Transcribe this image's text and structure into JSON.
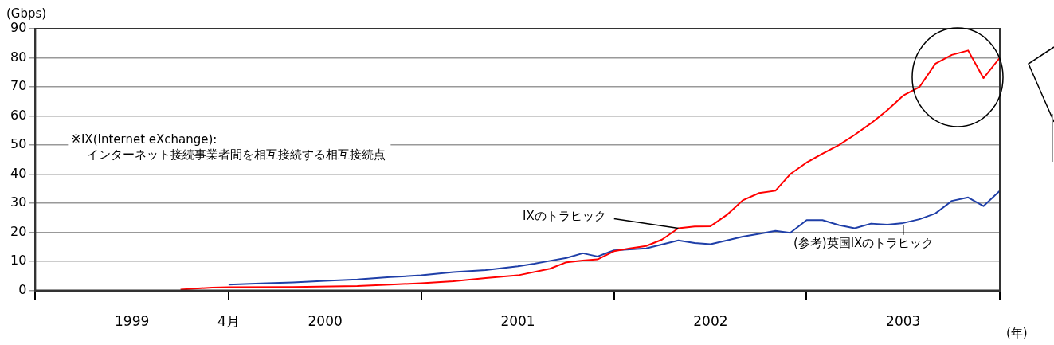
{
  "chart_data": {
    "type": "line",
    "ylabel": "(Gbps)",
    "xlabel": "(年)",
    "annotations": [
      "※IX(Internet eXchange):\nインターネット接続事業者間を相互接続する相互接続点"
    ],
    "xlim": [
      "1999-04",
      "2004-04"
    ],
    "xticks": [
      {
        "value": "1999-04",
        "label": null
      },
      {
        "value": "1999-10",
        "label": "1999"
      },
      {
        "value": "2000-04",
        "label": "4月"
      },
      {
        "value": "2000-10",
        "label": "2000"
      },
      {
        "value": "2001-04",
        "label": null
      },
      {
        "value": "2001-10",
        "label": "2001"
      },
      {
        "value": "2002-04",
        "label": null
      },
      {
        "value": "2002-10",
        "label": "2002"
      },
      {
        "value": "2003-04",
        "label": null
      },
      {
        "value": "2003-10",
        "label": "2003"
      },
      {
        "value": "2004-04",
        "label": null
      }
    ],
    "ylim": [
      0,
      90
    ],
    "yticks": [
      0,
      10,
      20,
      30,
      40,
      50,
      60,
      70,
      80,
      90
    ],
    "grid": "y",
    "legend": false,
    "marker": "none",
    "line_style": "solid",
    "series": [
      {
        "name": "IXのトラヒック",
        "color": "#ff0000",
        "x": [
          "2000-01",
          "2000-03",
          "2000-04",
          "2000-08",
          "2000-12",
          "2001-02",
          "2001-04",
          "2001-06",
          "2001-08",
          "2001-10",
          "2001-12",
          "2002-01",
          "2002-02",
          "2002-03",
          "2002-04",
          "2002-05",
          "2002-06",
          "2002-07",
          "2002-08",
          "2002-09",
          "2002-10",
          "2002-11",
          "2002-12",
          "2003-01",
          "2003-02",
          "2003-03",
          "2003-04",
          "2003-05",
          "2003-06",
          "2003-07",
          "2003-08",
          "2003-09",
          "2003-10",
          "2003-11",
          "2003-12",
          "2004-01",
          "2004-02",
          "2004-03",
          "2004-04"
        ],
        "values": [
          0.3,
          1.0,
          1.1,
          1.2,
          1.5,
          2.0,
          2.5,
          3.2,
          4.3,
          5.2,
          7.5,
          9.7,
          10.3,
          10.7,
          13.5,
          14.5,
          15.3,
          17.5,
          21.4,
          22,
          22.1,
          26,
          31,
          33.5,
          34.3,
          40,
          44,
          47,
          50,
          53.5,
          57.5,
          62,
          67,
          70,
          78,
          81,
          82.5,
          73,
          80
        ]
      },
      {
        "name": "(参考)英国IXのトラヒック",
        "color": "#1f3fa8",
        "x": [
          "2000-04",
          "2000-06",
          "2000-08",
          "2000-10",
          "2000-12",
          "2001-02",
          "2001-04",
          "2001-06",
          "2001-08",
          "2001-10",
          "2001-11",
          "2001-12",
          "2002-01",
          "2002-02",
          "2002-03",
          "2002-04",
          "2002-06",
          "2002-08",
          "2002-09",
          "2002-10",
          "2002-11",
          "2002-12",
          "2003-01",
          "2003-02",
          "2003-03",
          "2003-04",
          "2003-05",
          "2003-06",
          "2003-07",
          "2003-08",
          "2003-09",
          "2003-10",
          "2003-11",
          "2003-12",
          "2004-01",
          "2004-02",
          "2004-03",
          "2004-04"
        ],
        "values": [
          2.0,
          2.4,
          2.8,
          3.3,
          3.8,
          4.6,
          5.2,
          6.3,
          7.0,
          8.3,
          9.2,
          10.2,
          11.2,
          12.8,
          11.7,
          13.8,
          14.5,
          17.2,
          16.3,
          15.9,
          17.2,
          18.5,
          19.5,
          20.5,
          19.8,
          24.2,
          24.2,
          22.5,
          21.4,
          23,
          22.6,
          23.2,
          24.5,
          26.5,
          30.8,
          32,
          29,
          34.3
        ]
      }
    ]
  }
}
